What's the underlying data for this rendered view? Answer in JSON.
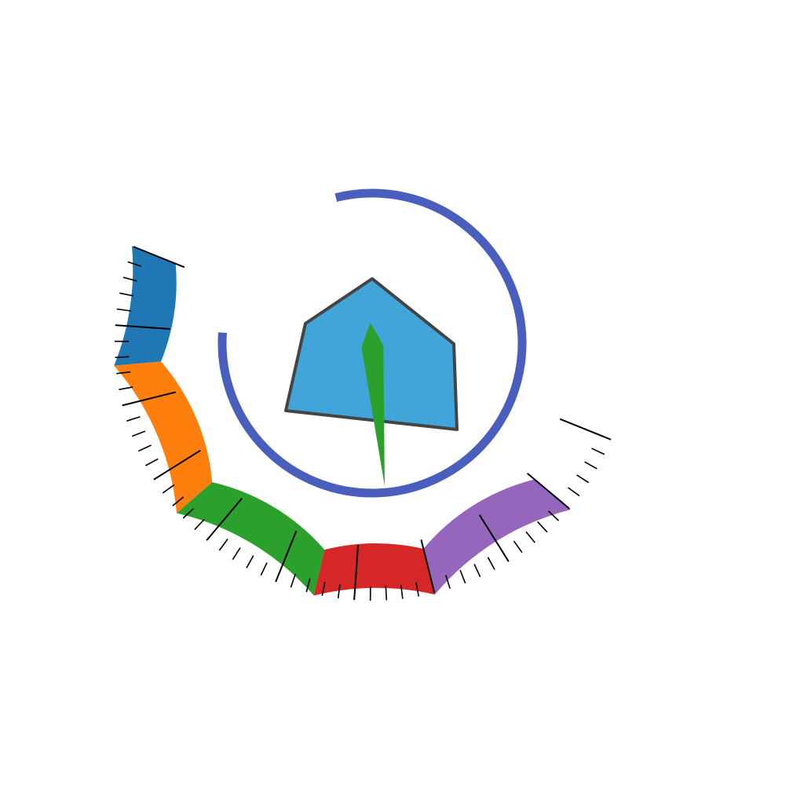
{
  "chart_data": {
    "type": "gauge",
    "title": "",
    "value": 6.5,
    "min": 0,
    "max": 10,
    "ticks": {
      "major_step": 1,
      "minor_per_major": 5,
      "show_labels": false
    },
    "bands": [
      {
        "from": 0,
        "to": 1.5,
        "color": "#1f77b4"
      },
      {
        "from": 1.5,
        "to": 3.5,
        "color": "#ff7f0e"
      },
      {
        "from": 3.5,
        "to": 5.5,
        "color": "#2ca02c"
      },
      {
        "from": 5.5,
        "to": 7.0,
        "color": "#d62728"
      },
      {
        "from": 7.0,
        "to": 9.0,
        "color": "#9467bd"
      }
    ],
    "needle": {
      "color": "#2ca02c"
    },
    "progress_ring": {
      "color": "#4a5fbd",
      "fraction": 0.8
    },
    "center_shape": {
      "type": "pentagon",
      "fill": "#42a5da",
      "stroke": "#444444"
    }
  }
}
